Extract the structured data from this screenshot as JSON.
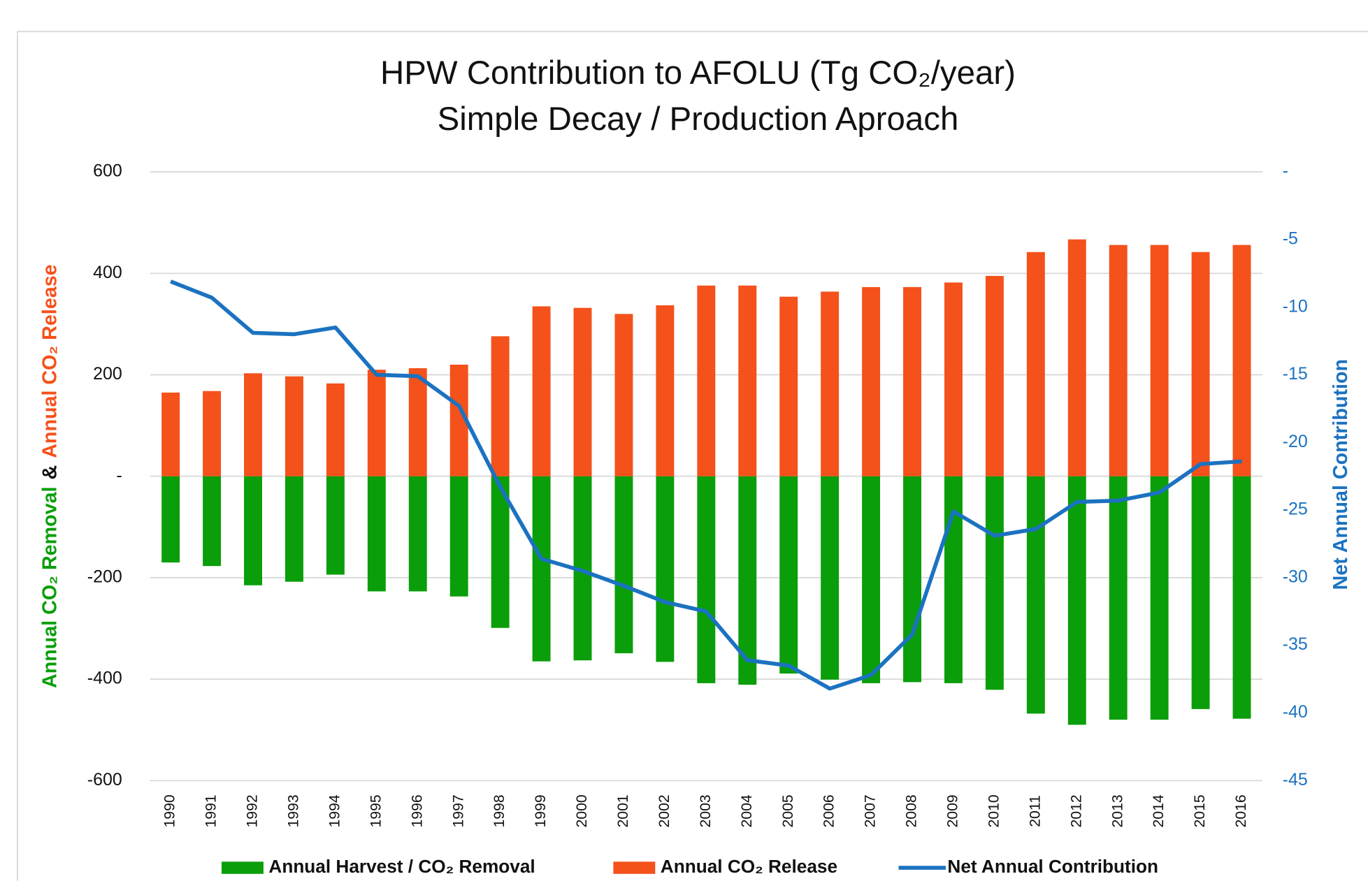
{
  "chart_data": {
    "type": "combo",
    "title": [
      "HPW Contribution to AFOLU (Tg CO₂/year)",
      "Simple Decay / Production Aproach"
    ],
    "y_label": [
      {
        "text": "Annual CO₂ Removal",
        "color": "#0a9e0a"
      },
      {
        "text": "&",
        "color": "#111111"
      },
      {
        "text": "Annual CO₂ Release",
        "color": "#f4511b"
      }
    ],
    "y2_label": {
      "text": "Net Annual Contribution",
      "color": "#1b72c0"
    },
    "categories": [
      "1990",
      "1991",
      "1992",
      "1993",
      "1994",
      "1995",
      "1996",
      "1997",
      "1998",
      "1999",
      "2000",
      "2001",
      "2002",
      "2003",
      "2004",
      "2005",
      "2006",
      "2007",
      "2008",
      "2009",
      "2010",
      "2011",
      "2012",
      "2013",
      "2014",
      "2015",
      "2016"
    ],
    "series": [
      {
        "name": "Annual Harvest / CO₂ Removal",
        "type": "bar",
        "color": "#0a9e0a",
        "values": [
          -170,
          -177,
          -215,
          -208,
          -194,
          -227,
          -227,
          -237,
          -299,
          -365,
          -363,
          -349,
          -366,
          -408,
          -411,
          -389,
          -401,
          -408,
          -406,
          -408,
          -421,
          -468,
          -490,
          -480,
          -480,
          -459,
          -478
        ]
      },
      {
        "name": "Annual CO₂ Release",
        "type": "bar",
        "color": "#f4511b",
        "values": [
          165,
          168,
          203,
          197,
          183,
          210,
          213,
          220,
          276,
          335,
          332,
          320,
          337,
          376,
          376,
          354,
          364,
          373,
          373,
          382,
          395,
          442,
          467,
          456,
          456,
          442,
          456
        ]
      },
      {
        "name": "Net Annual Contribution",
        "type": "line",
        "color": "#1b72c0",
        "axis": "y2",
        "values": [
          -8.1,
          -9.3,
          -11.9,
          -12.0,
          -11.5,
          -15.0,
          -15.1,
          -17.3,
          -23.3,
          -28.6,
          -29.5,
          -30.6,
          -31.8,
          -32.5,
          -36.1,
          -36.5,
          -38.2,
          -37.2,
          -34.2,
          -25.1,
          -26.9,
          -26.4,
          -24.4,
          -24.3,
          -23.7,
          -21.6,
          -21.4
        ]
      }
    ],
    "ylim": [
      -600,
      600
    ],
    "yticks": [
      -600,
      -400,
      -200,
      {
        "value": 0,
        "label": "-"
      },
      200,
      400,
      600
    ],
    "y2lim": [
      -45,
      0
    ],
    "y2ticks": [
      -45,
      -40,
      -35,
      -30,
      -25,
      -20,
      -15,
      -10,
      -5,
      {
        "value": 0,
        "label": "-"
      }
    ],
    "y2tick_color": "#1b72c0",
    "grid": true,
    "legend": "bottom"
  }
}
